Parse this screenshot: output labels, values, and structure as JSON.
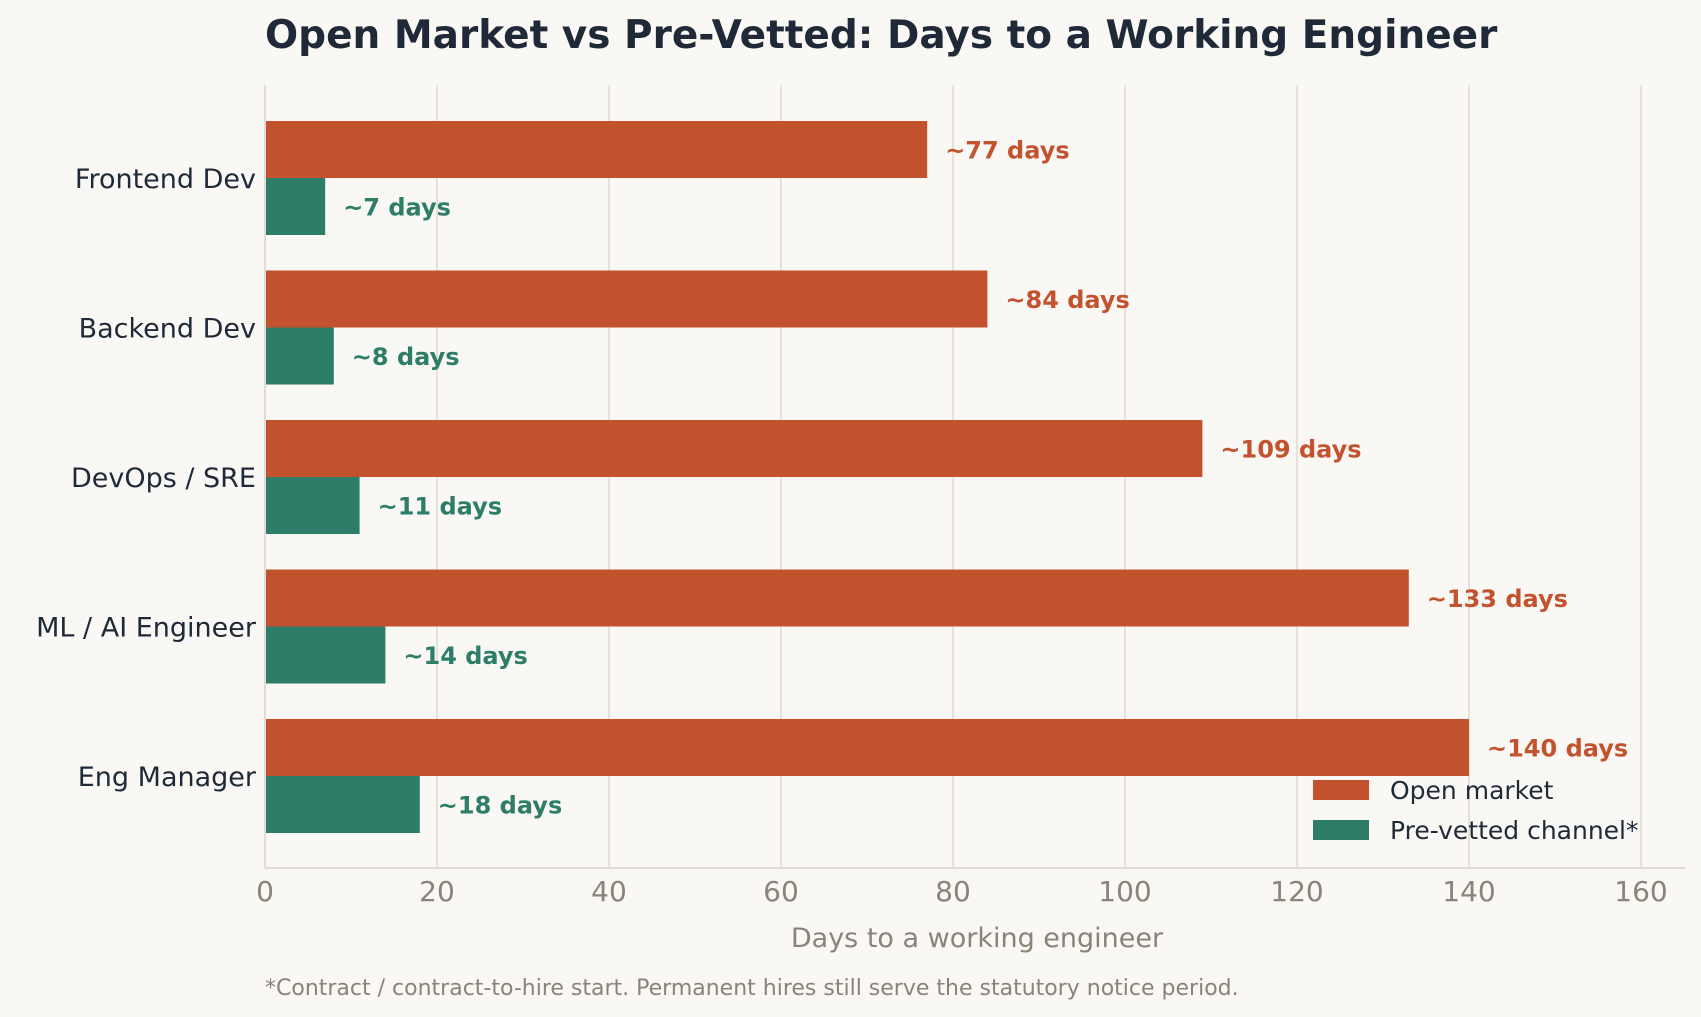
{
  "chart_data": {
    "type": "bar",
    "orientation": "horizontal",
    "title": "Open Market vs Pre-Vetted: Days to a Working Engineer",
    "xlabel": "Days to a working engineer",
    "ylabel": "",
    "xlim": [
      0,
      165
    ],
    "xticks": [
      0,
      20,
      40,
      60,
      80,
      100,
      120,
      140,
      160
    ],
    "grid": true,
    "legend_position": "bottom-right",
    "categories": [
      "Frontend Dev",
      "Backend Dev",
      "DevOps / SRE",
      "ML / AI Engineer",
      "Eng Manager"
    ],
    "series": [
      {
        "name": "Open market",
        "color": "#c3532f",
        "values": [
          77,
          84,
          109,
          133,
          140
        ],
        "labels": [
          "~77 days",
          "~84 days",
          "~109 days",
          "~133 days",
          "~140 days"
        ]
      },
      {
        "name": "Pre-vetted channel*",
        "color": "#2e7d69",
        "values": [
          7,
          8,
          11,
          14,
          18
        ],
        "labels": [
          "~7 days",
          "~8 days",
          "~11 days",
          "~14 days",
          "~18 days"
        ]
      }
    ],
    "footnote": "*Contract / contract-to-hire start. Permanent hires still serve the statutory notice period."
  }
}
